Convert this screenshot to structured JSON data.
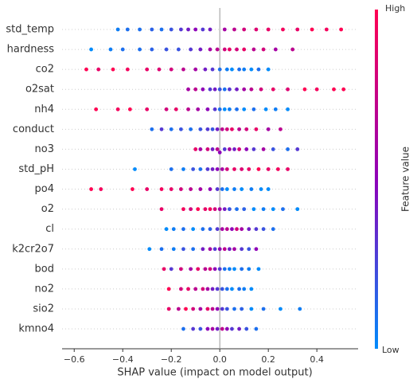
{
  "chart_data": {
    "type": "beeswarm",
    "xlabel": "SHAP value (impact on model output)",
    "xlim": [
      -0.65,
      0.57
    ],
    "xticks": [
      {
        "value": -0.6,
        "label": "−0.6"
      },
      {
        "value": -0.4,
        "label": "−0.4"
      },
      {
        "value": -0.2,
        "label": "−0.2"
      },
      {
        "value": 0,
        "label": "0.0"
      },
      0.2,
      0.4
    ],
    "grid": true,
    "colorbar": {
      "label": "Feature value",
      "high": "High",
      "low": "Low",
      "colors": [
        "#008bfb",
        "#8e00b8",
        "#ff0052"
      ]
    },
    "series": [
      {
        "name": "std_temp",
        "values": [
          -0.42,
          -0.38,
          -0.33,
          -0.28,
          -0.24,
          -0.2,
          -0.16,
          -0.13,
          -0.1,
          -0.07,
          -0.04,
          0.02,
          0.06,
          0.1,
          0.15,
          0.2,
          0.26,
          0.32,
          0.38,
          0.44,
          0.5
        ],
        "feature_values": [
          0.05,
          0.1,
          0.1,
          0.15,
          0.1,
          0.2,
          0.3,
          0.4,
          0.5,
          0.3,
          0.4,
          0.6,
          0.7,
          0.8,
          0.85,
          0.9,
          0.95,
          0.9,
          1,
          0.95,
          1
        ]
      },
      {
        "name": "hardness",
        "values": [
          -0.53,
          -0.45,
          -0.4,
          -0.33,
          -0.28,
          -0.22,
          -0.17,
          -0.12,
          -0.08,
          -0.04,
          -0.01,
          0.02,
          0.04,
          0.07,
          0.1,
          0.14,
          0.18,
          0.23,
          0.3
        ],
        "feature_values": [
          0,
          0.05,
          0.1,
          0.1,
          0.15,
          0.2,
          0.2,
          0.3,
          0.4,
          0.6,
          0.7,
          0.8,
          0.9,
          0.8,
          0.9,
          0.7,
          0.8,
          0.6,
          0.7
        ]
      },
      {
        "name": "co2",
        "values": [
          -0.55,
          -0.5,
          -0.44,
          -0.38,
          -0.3,
          -0.25,
          -0.2,
          -0.15,
          -0.1,
          -0.06,
          -0.03,
          0.0,
          0.03,
          0.05,
          0.08,
          0.1,
          0.13,
          0.16,
          0.2
        ],
        "feature_values": [
          1,
          0.9,
          1,
          0.95,
          0.9,
          0.85,
          0.8,
          0.7,
          0.6,
          0.4,
          0.3,
          0.1,
          0.05,
          0,
          0.1,
          0.05,
          0,
          0.1,
          0
        ]
      },
      {
        "name": "o2sat",
        "values": [
          -0.13,
          -0.1,
          -0.07,
          -0.04,
          -0.02,
          0,
          0.02,
          0.04,
          0.07,
          0.1,
          0.13,
          0.17,
          0.22,
          0.28,
          0.35,
          0.4,
          0.47,
          0.51
        ],
        "feature_values": [
          0.6,
          0.7,
          0.5,
          0.3,
          0.4,
          0.2,
          0.1,
          0.3,
          0.4,
          0.6,
          0.7,
          0.8,
          0.9,
          0.85,
          1,
          0.95,
          1,
          1
        ]
      },
      {
        "name": "nh4",
        "values": [
          -0.51,
          -0.42,
          -0.37,
          -0.3,
          -0.22,
          -0.18,
          -0.13,
          -0.09,
          -0.05,
          -0.02,
          0,
          0.02,
          0.04,
          0.07,
          0.1,
          0.14,
          0.19,
          0.23,
          0.28
        ],
        "feature_values": [
          1,
          0.95,
          1,
          0.9,
          0.8,
          0.9,
          0.7,
          0.6,
          0.5,
          0.3,
          0.1,
          0,
          0.05,
          0.1,
          0,
          0.1,
          0,
          0.05,
          0
        ]
      },
      {
        "name": "conduct",
        "values": [
          -0.28,
          -0.24,
          -0.2,
          -0.16,
          -0.12,
          -0.08,
          -0.05,
          -0.03,
          -0.01,
          0.01,
          0.03,
          0.05,
          0.08,
          0.11,
          0.15,
          0.2,
          0.25
        ],
        "feature_values": [
          0.1,
          0.3,
          0.1,
          0.2,
          0.1,
          0.2,
          0.3,
          0.2,
          0.4,
          0.7,
          0.8,
          0.9,
          0.7,
          0.8,
          0.9,
          0.6,
          0.7
        ]
      },
      {
        "name": "no3",
        "values": [
          -0.1,
          -0.08,
          -0.05,
          -0.03,
          -0.01,
          0,
          0.02,
          0.04,
          0.06,
          0.08,
          0.11,
          0.14,
          0.18,
          0.22,
          0.28,
          0.32
        ],
        "feature_values": [
          0.9,
          0.6,
          0.8,
          0.4,
          0.7,
          0.5,
          0.3,
          0.6,
          0.4,
          0.8,
          0.5,
          0.3,
          0.6,
          0.2,
          0.1,
          0.3
        ]
      },
      {
        "name": "std_pH",
        "values": [
          -0.35,
          -0.2,
          -0.15,
          -0.11,
          -0.08,
          -0.05,
          -0.03,
          -0.01,
          0.01,
          0.03,
          0.06,
          0.09,
          0.12,
          0.16,
          0.2,
          0.24,
          0.28
        ],
        "feature_values": [
          0,
          0.1,
          0.05,
          0.2,
          0.1,
          0.3,
          0.4,
          0.5,
          0.6,
          0.8,
          0.9,
          0.85,
          0.9,
          1,
          0.9,
          0.95,
          0.9
        ]
      },
      {
        "name": "po4",
        "values": [
          -0.53,
          -0.49,
          -0.36,
          -0.3,
          -0.24,
          -0.2,
          -0.16,
          -0.12,
          -0.08,
          -0.04,
          -0.01,
          0.01,
          0.03,
          0.06,
          0.09,
          0.13,
          0.17,
          0.2
        ],
        "feature_values": [
          1,
          0.95,
          1,
          0.9,
          0.95,
          0.9,
          0.8,
          0.7,
          0.6,
          0.5,
          0.3,
          0.1,
          0,
          0.05,
          0,
          0.05,
          0,
          0
        ]
      },
      {
        "name": "o2",
        "values": [
          -0.24,
          -0.15,
          -0.12,
          -0.09,
          -0.06,
          -0.04,
          -0.02,
          0,
          0.02,
          0.04,
          0.07,
          0.1,
          0.14,
          0.18,
          0.22,
          0.26,
          0.32
        ],
        "feature_values": [
          0.9,
          0.95,
          0.8,
          1,
          0.9,
          0.95,
          0.8,
          0.6,
          0.4,
          0.2,
          0.1,
          0.15,
          0,
          0.05,
          0,
          0.1,
          0
        ]
      },
      {
        "name": "cl",
        "values": [
          -0.22,
          -0.19,
          -0.15,
          -0.11,
          -0.07,
          -0.04,
          -0.01,
          0.01,
          0.03,
          0.05,
          0.07,
          0.09,
          0.12,
          0.15,
          0.18,
          0.22
        ],
        "feature_values": [
          0,
          0.05,
          0.1,
          0,
          0.1,
          0.15,
          0.3,
          0.6,
          0.7,
          0.5,
          0.8,
          0.6,
          0.4,
          0.3,
          0.2,
          0.1
        ]
      },
      {
        "name": "k2cr2o7",
        "values": [
          -0.29,
          -0.24,
          -0.19,
          -0.15,
          -0.11,
          -0.07,
          -0.04,
          -0.02,
          0,
          0.02,
          0.04,
          0.06,
          0.09,
          0.12,
          0.15
        ],
        "feature_values": [
          0,
          0.1,
          0.05,
          0.2,
          0.1,
          0.4,
          0.6,
          0.3,
          0.5,
          0.7,
          0.4,
          0.6,
          0.3,
          0.2,
          0.5
        ]
      },
      {
        "name": "bod",
        "values": [
          -0.23,
          -0.2,
          -0.16,
          -0.12,
          -0.09,
          -0.06,
          -0.04,
          -0.02,
          0,
          0.02,
          0.04,
          0.06,
          0.09,
          0.12,
          0.16
        ],
        "feature_values": [
          0.9,
          0.3,
          0.8,
          0.6,
          0.9,
          0.7,
          0.8,
          0.5,
          0.3,
          0.1,
          0.05,
          0,
          0.1,
          0.05,
          0
        ]
      },
      {
        "name": "no2",
        "values": [
          -0.21,
          -0.16,
          -0.13,
          -0.1,
          -0.07,
          -0.05,
          -0.03,
          -0.01,
          0.01,
          0.03,
          0.05,
          0.08,
          0.1,
          0.13
        ],
        "feature_values": [
          1,
          0.8,
          0.9,
          0.7,
          0.8,
          0.6,
          0.4,
          0.3,
          0.2,
          0.1,
          0,
          0.1,
          0.05,
          0
        ]
      },
      {
        "name": "sio2",
        "values": [
          -0.21,
          -0.17,
          -0.14,
          -0.11,
          -0.08,
          -0.05,
          -0.03,
          -0.01,
          0.01,
          0.03,
          0.06,
          0.09,
          0.13,
          0.18,
          0.25,
          0.33
        ],
        "feature_values": [
          0.9,
          0.7,
          1,
          0.8,
          0.6,
          0.9,
          0.7,
          0.5,
          0.3,
          0.2,
          0.1,
          0.15,
          0,
          0.1,
          0,
          0.05
        ]
      },
      {
        "name": "kmno4",
        "values": [
          -0.15,
          -0.11,
          -0.08,
          -0.05,
          -0.03,
          -0.01,
          0.01,
          0.03,
          0.05,
          0.08,
          0.11,
          0.15
        ],
        "feature_values": [
          0.1,
          0.3,
          0.2,
          0.5,
          0.6,
          0.4,
          0.7,
          0.5,
          0.3,
          0.4,
          0.2,
          0.1
        ]
      }
    ]
  }
}
